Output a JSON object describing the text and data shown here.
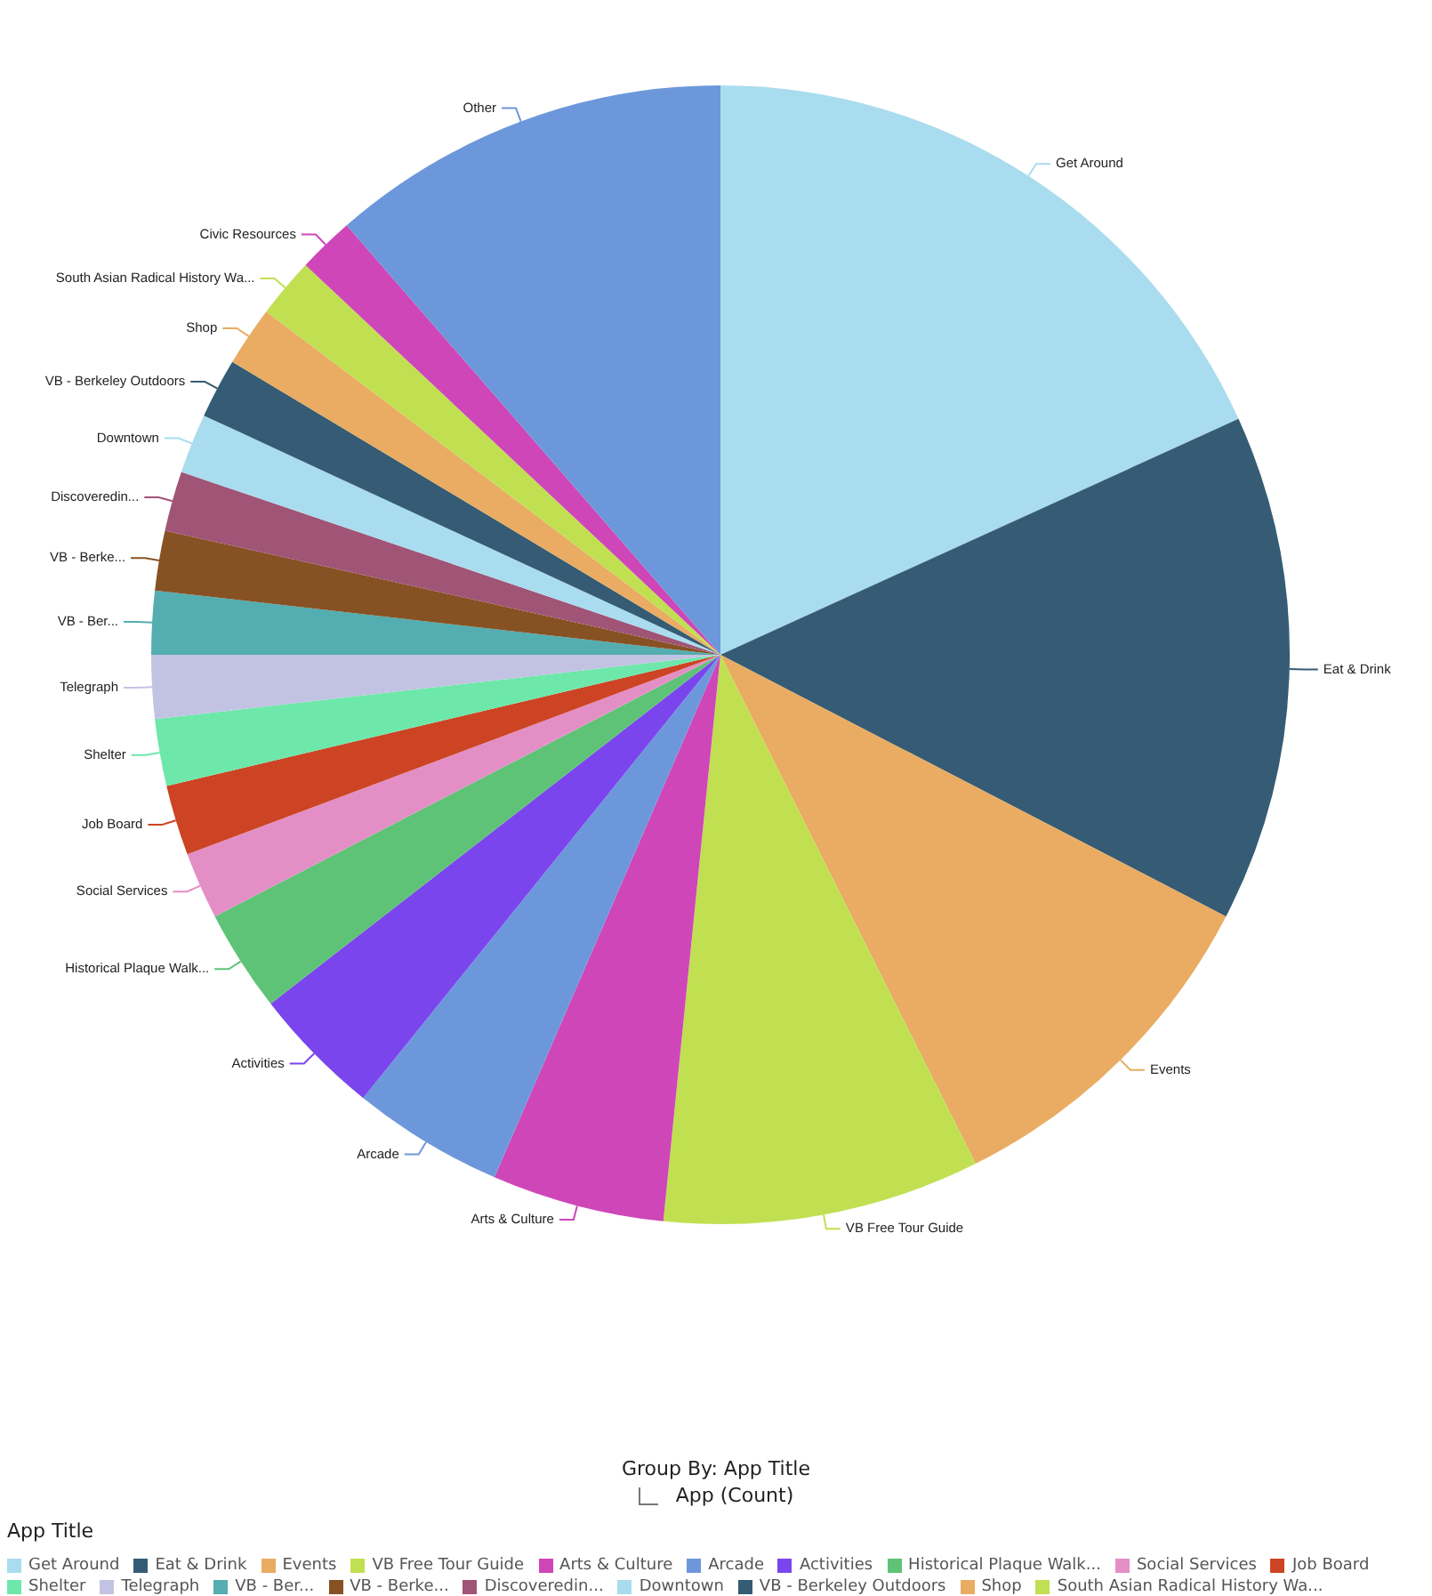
{
  "chart_data": {
    "type": "pie",
    "categories": [
      "Get Around",
      "Eat & Drink",
      "Events",
      "VB Free Tour Guide",
      "Arts & Culture",
      "Arcade",
      "Activities",
      "Historical Plaque Walk...",
      "Social Services",
      "Job Board",
      "Shelter",
      "Telegraph",
      "VB - Ber...",
      "VB - Berke...",
      "Discoveredin...",
      "Downtown",
      "VB - Berkeley Outdoors",
      "Shop",
      "South Asian Radical History Wa...",
      "Civic Resources",
      "Other"
    ],
    "values": [
      18.2,
      14.4,
      10.0,
      9.0,
      4.9,
      4.3,
      3.7,
      2.9,
      1.9,
      2.0,
      1.9,
      1.8,
      1.8,
      1.7,
      1.7,
      1.7,
      1.7,
      1.7,
      1.7,
      1.6,
      11.4
    ],
    "colors": [
      "#a9dcee",
      "#355c74",
      "#e9ac62",
      "#c0e052",
      "#cf46b8",
      "#6c98db",
      "#7b45ee",
      "#5ec376",
      "#e38fc6",
      "#cc4424",
      "#6ee8aa",
      "#c2c3e2",
      "#54adb0",
      "#865223",
      "#a05476",
      "#a9dcee",
      "#355c74",
      "#e9ac62",
      "#c0e052",
      "#cf46b8",
      "#6c98db"
    ],
    "legend_title": "App Title",
    "legend": "bottom left",
    "annotations": [
      "Group By: App Title",
      "App (Count)"
    ]
  }
}
